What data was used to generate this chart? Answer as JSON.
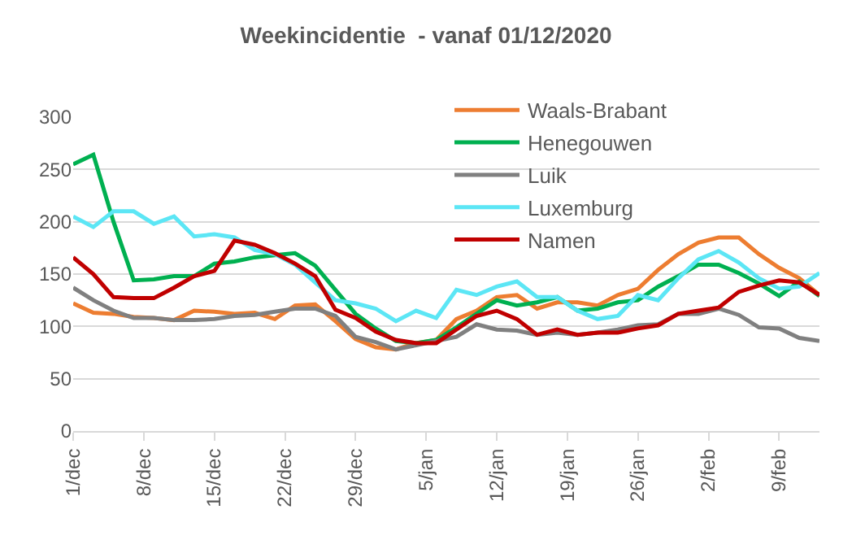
{
  "chart_data": {
    "type": "line",
    "title": "Weekincidentie  - vanaf 01/12/2020",
    "x": [
      "2020-12-01",
      "2020-12-03",
      "2020-12-05",
      "2020-12-07",
      "2020-12-09",
      "2020-12-11",
      "2020-12-13",
      "2020-12-15",
      "2020-12-17",
      "2020-12-19",
      "2020-12-21",
      "2020-12-23",
      "2020-12-25",
      "2020-12-27",
      "2020-12-29",
      "2020-12-31",
      "2021-01-02",
      "2021-01-04",
      "2021-01-06",
      "2021-01-08",
      "2021-01-10",
      "2021-01-12",
      "2021-01-14",
      "2021-01-16",
      "2021-01-18",
      "2021-01-20",
      "2021-01-22",
      "2021-01-24",
      "2021-01-26",
      "2021-01-28",
      "2021-01-30",
      "2021-02-01",
      "2021-02-03",
      "2021-02-05",
      "2021-02-07",
      "2021-02-09",
      "2021-02-11",
      "2021-02-13"
    ],
    "series": [
      {
        "name": "Waals-Brabant",
        "color": "#ed7d31",
        "values": [
          122,
          113,
          112,
          109,
          108,
          106,
          115,
          114,
          112,
          113,
          107,
          120,
          121,
          105,
          88,
          80,
          78,
          84,
          87,
          107,
          115,
          128,
          130,
          117,
          123,
          123,
          120,
          130,
          136,
          154,
          169,
          180,
          185,
          185,
          169,
          156,
          146,
          130
        ]
      },
      {
        "name": "Henegouwen",
        "color": "#00b050",
        "values": [
          255,
          264,
          200,
          144,
          145,
          148,
          148,
          160,
          162,
          166,
          168,
          170,
          158,
          135,
          112,
          98,
          86,
          84,
          87,
          99,
          112,
          125,
          120,
          123,
          128,
          115,
          117,
          123,
          125,
          138,
          148,
          159,
          159,
          151,
          141,
          129,
          143,
          129
        ]
      },
      {
        "name": "Luik",
        "color": "#808080",
        "values": [
          137,
          125,
          115,
          108,
          108,
          106,
          106,
          107,
          110,
          111,
          114,
          117,
          117,
          110,
          90,
          85,
          78,
          82,
          86,
          90,
          102,
          97,
          96,
          92,
          94,
          92,
          94,
          97,
          101,
          102,
          112,
          112,
          117,
          111,
          99,
          98,
          89,
          86
        ]
      },
      {
        "name": "Luxemburg",
        "color": "#5ce6f5",
        "values": [
          205,
          195,
          210,
          210,
          198,
          205,
          186,
          188,
          185,
          173,
          169,
          159,
          142,
          125,
          122,
          117,
          105,
          115,
          108,
          135,
          130,
          138,
          143,
          128,
          128,
          115,
          107,
          110,
          130,
          125,
          146,
          164,
          172,
          161,
          146,
          136,
          138,
          151
        ]
      },
      {
        "name": "Namen",
        "color": "#c00000",
        "values": [
          166,
          150,
          128,
          127,
          127,
          137,
          148,
          153,
          182,
          178,
          170,
          160,
          148,
          116,
          108,
          95,
          87,
          84,
          84,
          97,
          110,
          115,
          107,
          92,
          97,
          92,
          94,
          94,
          98,
          101,
          112,
          115,
          118,
          133,
          139,
          144,
          142,
          130
        ]
      }
    ],
    "xlim": [
      "2020-12-01",
      "2021-02-13"
    ],
    "xticks": [
      {
        "value": "2020-12-01",
        "label": "1/dec"
      },
      {
        "value": "2020-12-08",
        "label": "8/dec"
      },
      {
        "value": "2020-12-15",
        "label": "15/dec"
      },
      {
        "value": "2020-12-22",
        "label": "22/dec"
      },
      {
        "value": "2020-12-29",
        "label": "29/dec"
      },
      {
        "value": "2021-01-05",
        "label": "5/jan"
      },
      {
        "value": "2021-01-12",
        "label": "12/jan"
      },
      {
        "value": "2021-01-19",
        "label": "19/jan"
      },
      {
        "value": "2021-01-26",
        "label": "26/jan"
      },
      {
        "value": "2021-02-02",
        "label": "2/feb"
      },
      {
        "value": "2021-02-09",
        "label": "9/feb"
      }
    ],
    "ylim": [
      0,
      300
    ],
    "yticks": [
      0,
      50,
      100,
      150,
      200,
      250,
      300
    ],
    "grid": "y",
    "legend": "top right",
    "marker": "none",
    "line_style": "solid"
  }
}
